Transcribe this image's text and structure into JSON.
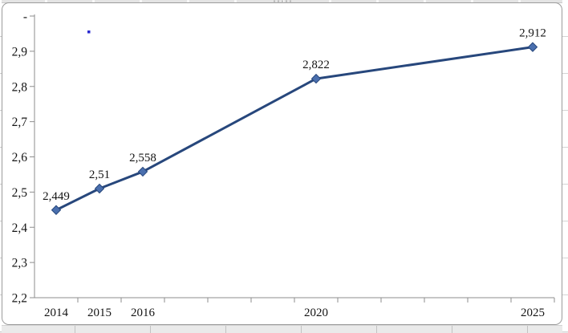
{
  "chart_data": {
    "type": "line",
    "title": "",
    "xlabel": "",
    "ylabel": "",
    "x": [
      2014,
      2015,
      2016,
      2020,
      2025
    ],
    "values": [
      2.449,
      2.51,
      2.558,
      2.822,
      2.912
    ],
    "point_labels": [
      "2,449",
      "2,51",
      "2,558",
      "2,822",
      "2,912"
    ],
    "x_axis": {
      "categories_from": 2014,
      "categories_to": 2025,
      "labeled_ticks": [
        "2014",
        "2015",
        "2016",
        "2020",
        "2025"
      ]
    },
    "y_axis": {
      "min": 2.2,
      "max": 3.0,
      "step": 0.1,
      "tick_labels_top_to_bottom": [
        "-",
        "2,9",
        "2,8",
        "2,7",
        "2,6",
        "2,5",
        "2,4",
        "2,3",
        "2,2"
      ]
    },
    "grid": false,
    "legend": "none",
    "marker": "diamond",
    "colors": {
      "line": "#27477c",
      "marker_fill": "#4a6fae",
      "axis": "#8e8e8e",
      "text": "#141414"
    }
  },
  "chrome": {
    "chart_border_color": "#9c9c9c",
    "sheet_cell_color": "#eaeaea"
  },
  "artifacts": {
    "stray_dot_color": "#2a2ad0",
    "selection_handle_dot_color": "#b4b4b4"
  }
}
